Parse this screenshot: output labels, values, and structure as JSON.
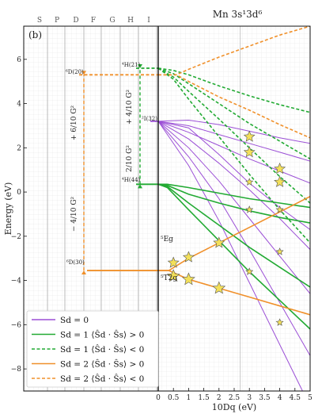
{
  "chart_data": {
    "type": "line",
    "title": "Mn 3s¹3d⁶",
    "panel_label": "(b)",
    "xlabel": "10Dq (eV)",
    "ylabel": "Energy (eV)",
    "xlim": [
      0,
      5
    ],
    "ylim": [
      -9,
      7.5
    ],
    "x_ticks": [
      "0",
      "0.5",
      "1",
      "1.5",
      "2",
      "2.5",
      "3",
      "3.5",
      "4",
      "4.5",
      "5"
    ],
    "y_ticks": [
      "−8",
      "−6",
      "−4",
      "−2",
      "0",
      "2",
      "4",
      "6"
    ],
    "left_columns": [
      "S",
      "P",
      "D",
      "F",
      "G",
      "H",
      "I"
    ],
    "level_labels": {
      "h4_top": "⁴H(21)",
      "i2": "²I(32)",
      "h4_mid": "⁴H(44)",
      "d6_top": "⁶D(20)",
      "d6_bottom": "⁶D(30)",
      "eg": "⁵Eg",
      "t2g": "⁵T2g"
    },
    "gap_labels": {
      "g1": "+ 4/10 G²",
      "g2": "2/10 G²",
      "g3": "+ 6/10 G²",
      "g4": "− 4/10 G²"
    },
    "legend": [
      {
        "label": "Sd = 0",
        "color": "#9b4fd6",
        "style": "solid"
      },
      {
        "label": "Sd = 1  ⟨Ŝd · Ŝs⟩ > 0",
        "color": "#22aa33",
        "style": "solid"
      },
      {
        "label": "Sd = 1  ⟨Ŝd · Ŝs⟩ < 0",
        "color": "#22aa33",
        "style": "dashed"
      },
      {
        "label": "Sd = 2  ⟨Ŝd · Ŝs⟩ > 0",
        "color": "#f0902a",
        "style": "solid"
      },
      {
        "label": "Sd = 2  ⟨Ŝd · Ŝs⟩ < 0",
        "color": "#f0902a",
        "style": "dashed"
      }
    ],
    "series": [
      {
        "group": "Sd=0",
        "color": "#9b4fd6",
        "dash": false,
        "x": [
          0,
          1,
          2,
          3,
          4,
          5
        ],
        "y": [
          3.2,
          3.25,
          3.05,
          2.75,
          2.45,
          2.2
        ]
      },
      {
        "group": "Sd=0",
        "color": "#9b4fd6",
        "dash": false,
        "x": [
          0,
          1,
          2,
          3,
          4,
          5
        ],
        "y": [
          3.2,
          3.0,
          2.6,
          2.2,
          1.8,
          1.4
        ]
      },
      {
        "group": "Sd=0",
        "color": "#9b4fd6",
        "dash": false,
        "x": [
          0,
          1,
          2,
          3,
          4,
          5
        ],
        "y": [
          3.2,
          2.7,
          2.1,
          1.5,
          0.95,
          0.4
        ]
      },
      {
        "group": "Sd=0",
        "color": "#9b4fd6",
        "dash": false,
        "x": [
          0,
          1,
          2,
          3,
          4,
          5
        ],
        "y": [
          3.2,
          2.4,
          1.3,
          0.1,
          -1.2,
          -2.6
        ]
      },
      {
        "group": "Sd=0",
        "color": "#9b4fd6",
        "dash": false,
        "x": [
          0,
          1,
          2,
          3,
          4,
          5
        ],
        "y": [
          3.2,
          2.0,
          0.5,
          -1.2,
          -2.9,
          -4.6
        ]
      },
      {
        "group": "Sd=0",
        "color": "#9b4fd6",
        "dash": false,
        "x": [
          0,
          1,
          2,
          3,
          4,
          5
        ],
        "y": [
          3.2,
          1.6,
          -0.3,
          -2.6,
          -5.0,
          -7.4
        ]
      },
      {
        "group": "Sd=0",
        "color": "#9b4fd6",
        "dash": false,
        "x": [
          0,
          1,
          2,
          3,
          4,
          5
        ],
        "y": [
          3.2,
          1.2,
          -1.3,
          -4.1,
          -6.9,
          -9.7
        ]
      },
      {
        "group": "Sd=0",
        "color": "#9b4fd6",
        "dash": false,
        "x": [
          0,
          1,
          2,
          3,
          4,
          5
        ],
        "y": [
          3.2,
          2.9,
          1.7,
          0.4,
          -0.7,
          -1.7
        ]
      },
      {
        "group": "Sd=1+",
        "color": "#22aa33",
        "dash": false,
        "x": [
          0,
          0.3,
          1,
          2,
          3,
          4,
          5
        ],
        "y": [
          0.35,
          0.35,
          0.2,
          -0.05,
          -0.3,
          -0.5,
          -0.7
        ]
      },
      {
        "group": "Sd=1+",
        "color": "#22aa33",
        "dash": false,
        "x": [
          0,
          0.3,
          1,
          2,
          3,
          4,
          5
        ],
        "y": [
          0.35,
          0.3,
          -0.1,
          -0.5,
          -0.85,
          -1.15,
          -1.4
        ]
      },
      {
        "group": "Sd=1+",
        "color": "#22aa33",
        "dash": false,
        "x": [
          0,
          0.3,
          1,
          2,
          3,
          4,
          5
        ],
        "y": [
          0.35,
          0.25,
          -0.5,
          -1.5,
          -2.5,
          -3.4,
          -4.3
        ]
      },
      {
        "group": "Sd=1+",
        "color": "#22aa33",
        "dash": false,
        "x": [
          0,
          0.3,
          1,
          2,
          3,
          4,
          5
        ],
        "y": [
          0.35,
          0.2,
          -0.8,
          -2.2,
          -3.6,
          -4.9,
          -6.2
        ]
      },
      {
        "group": "Sd=1-",
        "color": "#22aa33",
        "dash": true,
        "x": [
          0,
          0.5,
          1,
          2,
          3,
          4,
          5
        ],
        "y": [
          5.6,
          5.5,
          5.3,
          4.8,
          4.35,
          3.95,
          3.6
        ]
      },
      {
        "group": "Sd=1-",
        "color": "#22aa33",
        "dash": true,
        "x": [
          0,
          0.5,
          1,
          2,
          3,
          4,
          5
        ],
        "y": [
          5.6,
          5.35,
          4.9,
          4.0,
          3.1,
          2.3,
          1.5
        ]
      },
      {
        "group": "Sd=1-",
        "color": "#22aa33",
        "dash": true,
        "x": [
          0,
          0.5,
          1,
          2,
          3,
          4,
          5
        ],
        "y": [
          5.6,
          5.2,
          4.55,
          3.3,
          2.0,
          0.7,
          -0.5
        ]
      },
      {
        "group": "Sd=1-",
        "color": "#22aa33",
        "dash": true,
        "x": [
          0,
          0.5,
          1,
          2,
          3,
          4,
          5
        ],
        "y": [
          5.6,
          5.1,
          4.2,
          2.5,
          0.8,
          -0.8,
          -2.3
        ]
      },
      {
        "group": "Sd=2+",
        "color": "#f0902a",
        "dash": false,
        "x": [
          0,
          0.35,
          1,
          2,
          3,
          4,
          5
        ],
        "y": [
          -3.55,
          -3.55,
          -3.0,
          -2.3,
          -1.6,
          -0.9,
          -0.2
        ]
      },
      {
        "group": "Sd=2+",
        "color": "#f0902a",
        "dash": false,
        "x": [
          0,
          0.35,
          1,
          2,
          3,
          4,
          5
        ],
        "y": [
          -3.55,
          -3.55,
          -3.95,
          -4.35,
          -4.75,
          -5.15,
          -5.55
        ]
      },
      {
        "group": "Sd=2-",
        "color": "#f0902a",
        "dash": true,
        "x": [
          0,
          0.6,
          1,
          2,
          3,
          4,
          5
        ],
        "y": [
          5.3,
          5.3,
          5.55,
          6.1,
          6.6,
          7.1,
          7.5
        ]
      },
      {
        "group": "Sd=2-",
        "color": "#f0902a",
        "dash": true,
        "x": [
          0,
          0.6,
          1,
          2,
          3,
          4,
          5
        ],
        "y": [
          5.3,
          5.3,
          5.0,
          4.3,
          3.7,
          3.05,
          2.45
        ]
      }
    ],
    "stars": [
      {
        "x": 0.5,
        "y": -3.2,
        "big": false
      },
      {
        "x": 0.5,
        "y": -3.8,
        "big": true
      },
      {
        "x": 1.0,
        "y": -2.95,
        "big": false
      },
      {
        "x": 1.0,
        "y": -3.95,
        "big": true
      },
      {
        "x": 2.0,
        "y": -2.3,
        "big": false
      },
      {
        "x": 2.0,
        "y": -4.35,
        "big": true
      },
      {
        "x": 3.0,
        "y": 2.5,
        "big": false
      },
      {
        "x": 3.0,
        "y": 1.8,
        "big": false
      },
      {
        "x": 3.0,
        "y": 0.45,
        "big": false,
        "small": true
      },
      {
        "x": 3.0,
        "y": -0.8,
        "big": false,
        "small": true
      },
      {
        "x": 3.0,
        "y": -3.6,
        "big": false,
        "small": true
      },
      {
        "x": 4.0,
        "y": 1.05,
        "big": false
      },
      {
        "x": 4.0,
        "y": 0.45,
        "big": false
      },
      {
        "x": 4.0,
        "y": -0.8,
        "big": false,
        "small": true
      },
      {
        "x": 4.0,
        "y": -2.7,
        "big": false,
        "small": true
      },
      {
        "x": 4.0,
        "y": -5.9,
        "big": false,
        "small": true
      }
    ]
  }
}
